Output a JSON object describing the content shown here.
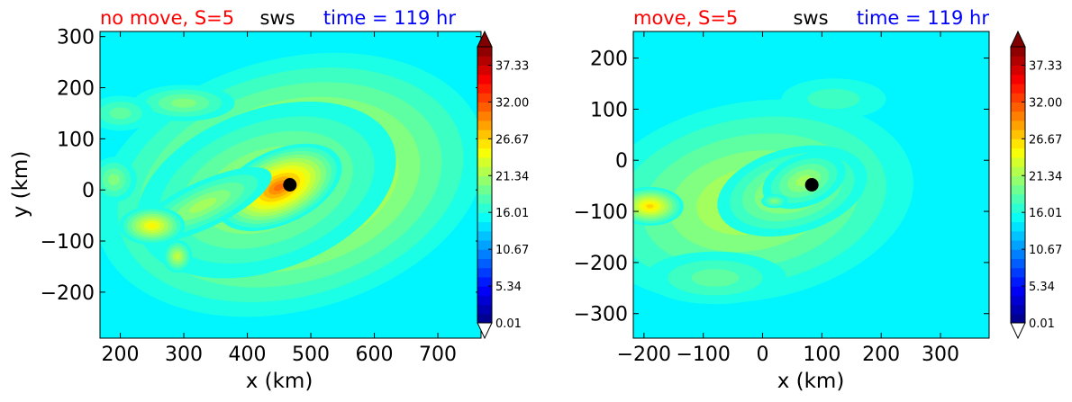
{
  "chart_data": [
    {
      "type": "heatmap",
      "title_left": "no move, S=5",
      "title_center": "sws",
      "title_right": "time = 119 hr",
      "title_colors": {
        "left": "#ff0000",
        "center": "#000000",
        "right": "#0000ff"
      },
      "xlabel": "x (km)",
      "ylabel": "y (km)",
      "xlim": [
        168,
        768
      ],
      "ylim": [
        -290,
        310
      ],
      "xticks": [
        200,
        300,
        400,
        500,
        600,
        700
      ],
      "yticks": [
        -200,
        -100,
        0,
        100,
        200,
        300
      ],
      "background_level": 11,
      "blobs": [
        {
          "x": 468,
          "y": 10,
          "rx": 330,
          "ry": 260,
          "angle": 15,
          "value": 9
        },
        {
          "x": 430,
          "y": 0,
          "rx": 230,
          "ry": 170,
          "angle": 20,
          "value": 6
        },
        {
          "x": 450,
          "y": 5,
          "rx": 110,
          "ry": 75,
          "angle": 25,
          "value": 12
        },
        {
          "x": 330,
          "y": -30,
          "rx": 130,
          "ry": 50,
          "angle": 25,
          "value": 5
        },
        {
          "x": 250,
          "y": -70,
          "rx": 55,
          "ry": 40,
          "angle": 0,
          "value": 8
        },
        {
          "x": 290,
          "y": -130,
          "rx": 25,
          "ry": 35,
          "angle": 0,
          "value": 6
        },
        {
          "x": 300,
          "y": 170,
          "rx": 90,
          "ry": 40,
          "angle": 0,
          "value": 4
        },
        {
          "x": 200,
          "y": 150,
          "rx": 60,
          "ry": 40,
          "angle": 0,
          "value": 3
        },
        {
          "x": 190,
          "y": 20,
          "rx": 40,
          "ry": 50,
          "angle": 0,
          "value": 4
        }
      ],
      "center_marker": {
        "x": 467,
        "y": 10
      },
      "colorbar": {
        "tick_labels": [
          "0.01",
          "5.34",
          "10.67",
          "16.01",
          "21.34",
          "26.67",
          "32.00",
          "37.33"
        ],
        "tick_values": [
          0.01,
          5.34,
          10.67,
          16.01,
          21.34,
          26.67,
          32.0,
          37.33
        ],
        "vmin": 0.01,
        "vmax": 40,
        "levels": 30
      }
    },
    {
      "type": "heatmap",
      "title_left": "move, S=5",
      "title_center": "sws",
      "title_right": "time = 119 hr",
      "title_colors": {
        "left": "#ff0000",
        "center": "#000000",
        "right": "#0000ff"
      },
      "xlabel": "x (km)",
      "ylabel": "",
      "xlim": [
        -218,
        382
      ],
      "ylim": [
        -348,
        252
      ],
      "xticks": [
        -200,
        -100,
        0,
        100,
        200,
        300
      ],
      "yticks": [
        -300,
        -200,
        -100,
        0,
        100,
        200
      ],
      "background_level": 11,
      "blobs": [
        {
          "x": -20,
          "y": -80,
          "rx": 300,
          "ry": 210,
          "angle": 10,
          "value": 6
        },
        {
          "x": 50,
          "y": -60,
          "rx": 140,
          "ry": 90,
          "angle": 15,
          "value": 6
        },
        {
          "x": 70,
          "y": -40,
          "rx": 80,
          "ry": 55,
          "angle": 20,
          "value": 5
        },
        {
          "x": 20,
          "y": -80,
          "rx": 25,
          "ry": 15,
          "angle": 0,
          "value": 4
        },
        {
          "x": -190,
          "y": -90,
          "rx": 60,
          "ry": 40,
          "angle": 0,
          "value": 9
        },
        {
          "x": -80,
          "y": -230,
          "rx": 140,
          "ry": 60,
          "angle": 0,
          "value": 3
        },
        {
          "x": 120,
          "y": 120,
          "rx": 110,
          "ry": 50,
          "angle": 0,
          "value": 2
        }
      ],
      "center_marker": {
        "x": 83,
        "y": -48
      },
      "colorbar": {
        "tick_labels": [
          "0.01",
          "5.34",
          "10.67",
          "16.01",
          "21.34",
          "26.67",
          "32.00",
          "37.33"
        ],
        "tick_values": [
          0.01,
          5.34,
          10.67,
          16.01,
          21.34,
          26.67,
          32.0,
          37.33
        ],
        "vmin": 0.01,
        "vmax": 40,
        "levels": 30
      }
    }
  ]
}
